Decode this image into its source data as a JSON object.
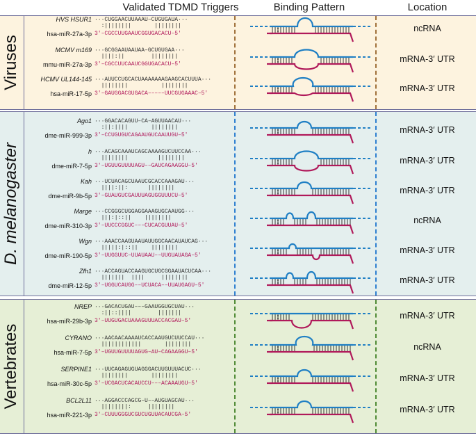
{
  "headers": {
    "col1": "Validated TDMD Triggers",
    "col2": "Binding Pattern",
    "col3": "Location"
  },
  "colors": {
    "viruses_bg": "#fdf3df",
    "dmel_bg": "#e4efee",
    "vert_bg": "#e6efd6",
    "target_strand": "#1f7fc4",
    "mirna_strand": "#b0195a",
    "seed_highlight": "#e8202a"
  },
  "sections": [
    {
      "label": "Viruses",
      "rows": [
        {
          "target": "HVS HSUR1",
          "mirna": "hsa-miR-27a-3p",
          "tseq": "···CUGGAACUUAAAU–CUGUGAUA···",
          "bars": "  :||||||||       ||||||||",
          "mseq": "3′–CGCCUUGAAUCGGUGACACU–5′",
          "location": "ncRNA"
        },
        {
          "target": "MCMV m169",
          "mirna": "mmu-miR-27a-3p",
          "tseq": "···GCGGAAUAAUAA–GCUGUGAA···",
          "bars": "  ||||:||        ||||||||",
          "mseq": "3′–CGCCUUCAAUCGGUGACACU–5′",
          "location": "mRNA-3′ UTR"
        },
        {
          "target": "HCMV UL144-145",
          "mirna": "hsa-miR-17-5p",
          "tseq": "···AUUCCUGCACUAAAAAAAGAAGCACUUUA···",
          "bars": "  ||||||||          ||||||||",
          "mseq": "3′–GAUGGACGUGACA–––––UUCGUGAAAC–5′",
          "location": "mRNA-3′ UTR"
        }
      ]
    },
    {
      "label": "D. melanogaster",
      "rows": [
        {
          "target": "Ago1",
          "mirna": "dme-miR-999-3p",
          "tseq": "···GGACACAGUU–CA–AGUUAACAU···",
          "bars": "  :||:||||       ||||||||",
          "mseq": "3′–CCUGUGUCAGAAUGUCAAUUGU–5′",
          "location": "mRNA-3′ UTR"
        },
        {
          "target": "h",
          "mirna": "dme-miR-7-5p",
          "tseq": "···ACAGCAAAUCAGCAAAAGUCUUCCAA···",
          "bars": "  ||||||||         ||||||||",
          "mseq": "3′–UGUUGUUUUAGU––GAUCAGAAGGU–5′",
          "location": "mRNA-3′ UTR"
        },
        {
          "target": "Kah",
          "mirna": "dme-miR-9b-5p",
          "tseq": "···UCUACAGCUAAUCGCACCAAAGAU···",
          "bars": "  ||||:||:      ||||||||",
          "mseq": "3′–GUAUGUCGAUUUAGUGGUUUCU–5′",
          "location": "mRNA-3′ UTR"
        },
        {
          "target": "Marge",
          "mirna": "dme-miR-310-3p",
          "tseq": "···CCGGGCUGGAGGAAAGUGCAAUGG···",
          "bars": "  |||:|::||    ||||||||",
          "mseq": "3′–UUCCCGGUC–––CUCACGUUAU–5′",
          "location": "ncRNA"
        },
        {
          "target": "Wgn",
          "mirna": "dme-miR-190-5p",
          "tseq": "···AAACCAAGUAAUAUUGGCAACAUAUCAG···",
          "bars": "  |||||:|::||    ||||||||",
          "mseq": "3′–UUGGUUC–UUAUAAU––UUGUAUAGA–5′",
          "location": "mRNA-3′ UTR"
        },
        {
          "target": "Zfh1",
          "mirna": "dme-miR-12-5p",
          "tseq": "···ACCAGUACCAAGUGCUGCGGAAUACUCAA···",
          "bars": "  |||||||  ||||     ||||||||",
          "mseq": "3′–UGGUCAUGG––UCUACA––UUAUGAGU–5′",
          "location": "mRNA-3′ UTR"
        }
      ]
    },
    {
      "label": "Vertebrates",
      "rows": [
        {
          "target": "NREP",
          "mirna": "hsa-miR-29b-3p",
          "tseq": "···GACACUGAU–––GAAUGGUGCUAU···",
          "bars": "  :||::||||        |||||||",
          "mseq": "3′–UUGUGACUAAAGUUUACCACGAU–5′",
          "location": "mRNA-3′ UTR"
        },
        {
          "target": "CYRANO",
          "mirna": "hsa-miR-7-5p",
          "tseq": "···AACAACAAAAUCACCAAUGUCUUCCAU···",
          "bars": "  ||||||||||||       ||||||||",
          "mseq": "3′–UGUUGUUUUAGUG–AU–CAGAAGGU–5′",
          "location": "ncRNA"
        },
        {
          "target": "SERPINE1",
          "mirna": "hsa-miR-30c-5p",
          "tseq": "···UUCAGAGUGUAGGGACUUGUUUACUC···",
          "bars": "  ||||||||       ||||||||",
          "mseq": "3′–UCGACUCACAUCCU–––ACAAAUGU–5′",
          "location": "mRNA-3′ UTR"
        },
        {
          "target": "BCL2L11",
          "mirna": "hsa-miR-221-3p",
          "tseq": "···AGGACCCAGCG–U––AUGUAGCAU···",
          "bars": "  ||||||||:     ||||||||",
          "mseq": "3′–CUUUGGGUCGUCUGUUACAUCGA–5′",
          "location": "mRNA-3′ UTR"
        }
      ]
    }
  ]
}
